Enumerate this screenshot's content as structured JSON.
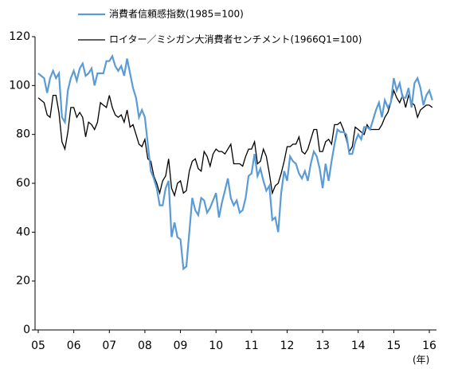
{
  "chart_data": {
    "type": "line",
    "x_label": "(年)",
    "categories": [
      "05",
      null,
      null,
      null,
      null,
      null,
      null,
      null,
      null,
      null,
      null,
      null,
      "06",
      null,
      null,
      null,
      null,
      null,
      null,
      null,
      null,
      null,
      null,
      null,
      "07",
      null,
      null,
      null,
      null,
      null,
      null,
      null,
      null,
      null,
      null,
      null,
      "08",
      null,
      null,
      null,
      null,
      null,
      null,
      null,
      null,
      null,
      null,
      null,
      "09",
      null,
      null,
      null,
      null,
      null,
      null,
      null,
      null,
      null,
      null,
      null,
      "10",
      null,
      null,
      null,
      null,
      null,
      null,
      null,
      null,
      null,
      null,
      null,
      "11",
      null,
      null,
      null,
      null,
      null,
      null,
      null,
      null,
      null,
      null,
      null,
      "12",
      null,
      null,
      null,
      null,
      null,
      null,
      null,
      null,
      null,
      null,
      null,
      "13",
      null,
      null,
      null,
      null,
      null,
      null,
      null,
      null,
      null,
      null,
      null,
      "14",
      null,
      null,
      null,
      null,
      null,
      null,
      null,
      null,
      null,
      null,
      null,
      "15",
      null,
      null,
      null,
      null,
      null,
      null,
      null,
      null,
      null,
      null,
      null,
      "16",
      null
    ],
    "series": [
      {
        "name": "消費者信頼感指数(1985=100)",
        "color": "#5b9bd5",
        "values": [
          105,
          104,
          103,
          97,
          103,
          106,
          103,
          105,
          87,
          85,
          98,
          103,
          106,
          102,
          107,
          109,
          104,
          105,
          107,
          100,
          105,
          105,
          105,
          110,
          110,
          112,
          108,
          106,
          108,
          104,
          111,
          105,
          99,
          95,
          87,
          90,
          87,
          76,
          65,
          62,
          58,
          51,
          51,
          58,
          61,
          38,
          44,
          38,
          37,
          25,
          26,
          40,
          54,
          49,
          47,
          54,
          53,
          48,
          50,
          53,
          56,
          46,
          52,
          57,
          62,
          54,
          51,
          53,
          48,
          49,
          54,
          63,
          64,
          72,
          63,
          66,
          61,
          57,
          59,
          45,
          46,
          40,
          56,
          65,
          61,
          71,
          69,
          68,
          64,
          62,
          65,
          61,
          68,
          73,
          71,
          66,
          58,
          68,
          61,
          69,
          76,
          82,
          81,
          81,
          80,
          72,
          72,
          77,
          80,
          78,
          83,
          83,
          82,
          86,
          90,
          93,
          87,
          94,
          91,
          93,
          103,
          98,
          101,
          95,
          95,
          99,
          91,
          101,
          103,
          99,
          92,
          96,
          98,
          94
        ]
      },
      {
        "name": "ロイター／ミシガン大消費者センチメント(1966Q1=100)",
        "color": "#000000",
        "values": [
          95,
          94,
          93,
          88,
          87,
          96,
          96,
          89,
          77,
          74,
          81,
          91,
          91,
          87,
          89,
          87,
          79,
          85,
          84,
          82,
          85,
          93,
          92,
          91,
          96,
          91,
          88,
          87,
          88,
          85,
          90,
          83,
          84,
          80,
          76,
          75,
          78,
          70,
          69,
          63,
          60,
          56,
          61,
          63,
          70,
          58,
          55,
          60,
          61,
          56,
          57,
          65,
          69,
          70,
          66,
          65,
          73,
          71,
          67,
          72,
          74,
          73,
          73,
          72,
          74,
          76,
          68,
          68,
          68,
          67,
          71,
          74,
          74,
          77,
          68,
          69,
          74,
          71,
          64,
          56,
          59,
          60,
          64,
          69,
          75,
          75,
          76,
          76,
          79,
          73,
          72,
          74,
          78,
          82,
          82,
          73,
          73,
          77,
          78,
          76,
          84,
          84,
          85,
          82,
          78,
          73,
          75,
          83,
          82,
          81,
          80,
          84,
          82,
          82,
          82,
          82,
          84,
          87,
          89,
          93,
          98,
          95,
          93,
          96,
          91,
          96,
          93,
          92,
          87,
          90,
          91,
          92,
          92,
          91
        ]
      }
    ],
    "ylim": [
      0,
      120
    ],
    "yticks": [
      0,
      20,
      40,
      60,
      80,
      100,
      120
    ],
    "legend": "top"
  }
}
